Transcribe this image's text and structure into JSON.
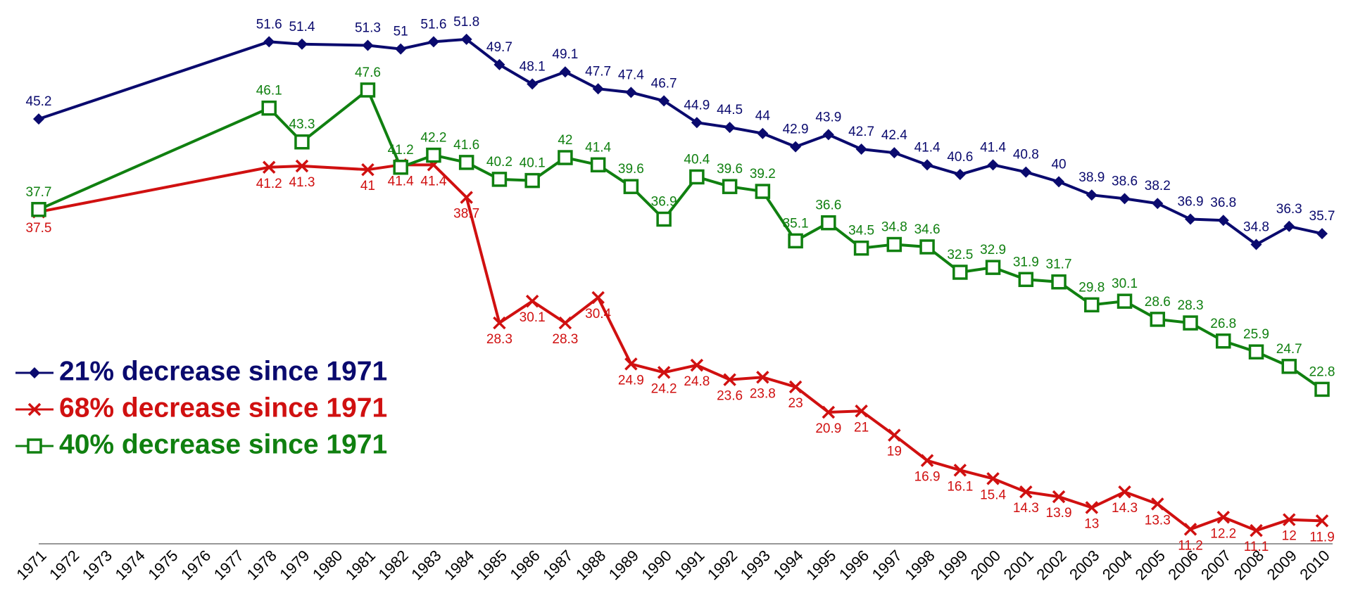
{
  "chart_data": {
    "type": "line",
    "x": [
      1971,
      1978,
      1979,
      1981,
      1982,
      1983,
      1984,
      1985,
      1986,
      1987,
      1988,
      1989,
      1990,
      1991,
      1992,
      1993,
      1994,
      1995,
      1996,
      1997,
      1998,
      1999,
      2000,
      2001,
      2002,
      2003,
      2004,
      2005,
      2006,
      2007,
      2008,
      2009,
      2010
    ],
    "xlim": [
      1971,
      2010
    ],
    "xticks": [
      1971,
      1972,
      1973,
      1974,
      1975,
      1976,
      1977,
      1978,
      1979,
      1980,
      1981,
      1982,
      1983,
      1984,
      1985,
      1986,
      1987,
      1988,
      1989,
      1990,
      1991,
      1992,
      1993,
      1994,
      1995,
      1996,
      1997,
      1998,
      1999,
      2000,
      2001,
      2002,
      2003,
      2004,
      2005,
      2006,
      2007,
      2008,
      2009,
      2010
    ],
    "ylim": [
      10,
      55
    ],
    "legend": "left",
    "series": [
      {
        "name": "21% decrease since 1971",
        "color": "#0a0a6e",
        "marker": "diamond",
        "values": [
          45.2,
          51.6,
          51.4,
          51.3,
          51,
          51.6,
          51.8,
          49.7,
          48.1,
          49.1,
          47.7,
          47.4,
          46.7,
          44.9,
          44.5,
          44,
          42.9,
          43.9,
          42.7,
          42.4,
          41.4,
          40.6,
          41.4,
          40.8,
          40,
          38.9,
          38.6,
          38.2,
          36.9,
          36.8,
          34.8,
          36.3,
          35.7
        ]
      },
      {
        "name": "68% decrease since 1971",
        "color": "#d01010",
        "marker": "x",
        "values": [
          37.5,
          41.2,
          41.3,
          41,
          41.4,
          41.4,
          38.7,
          28.3,
          30.1,
          28.3,
          30.4,
          24.9,
          24.2,
          24.8,
          23.6,
          23.8,
          23,
          20.9,
          21,
          19,
          16.9,
          16.1,
          15.4,
          14.3,
          13.9,
          13,
          14.3,
          13.3,
          11.2,
          12.2,
          11.1,
          12,
          11.9
        ]
      },
      {
        "name": "40% decrease since 1971",
        "color": "#108010",
        "marker": "square",
        "values": [
          37.7,
          46.1,
          43.3,
          47.6,
          41.2,
          42.2,
          41.6,
          40.2,
          40.1,
          42,
          41.4,
          39.6,
          36.9,
          40.4,
          39.6,
          39.2,
          35.1,
          36.6,
          34.5,
          34.8,
          34.6,
          32.5,
          32.9,
          31.9,
          31.7,
          29.8,
          30.1,
          28.6,
          28.3,
          26.8,
          25.9,
          24.7,
          22.8
        ]
      }
    ]
  }
}
